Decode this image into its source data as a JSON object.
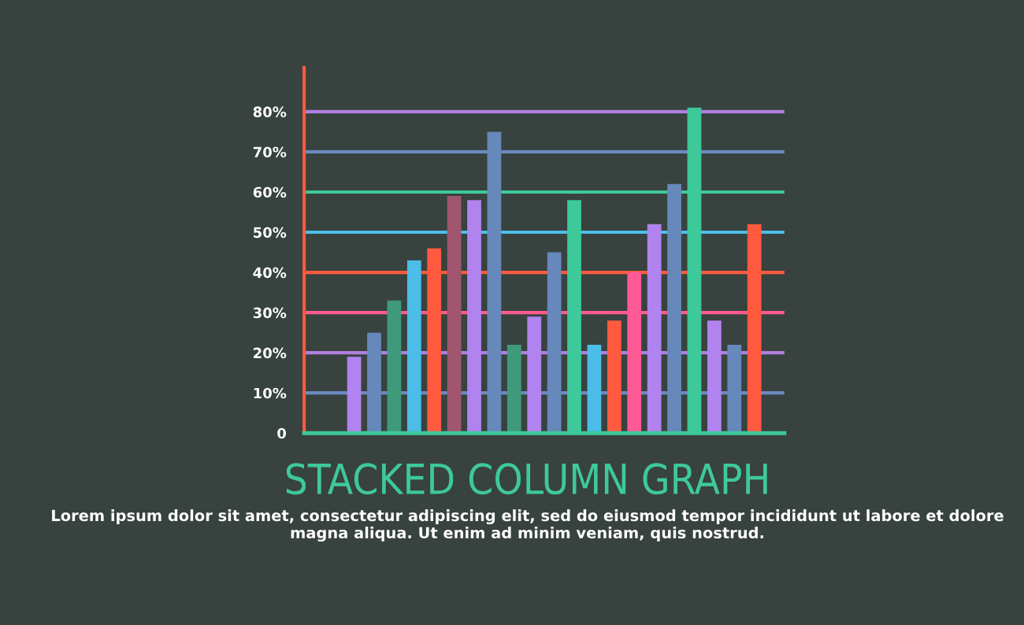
{
  "chart_data": {
    "type": "bar",
    "title": "STACKED COLUMN GRAPH",
    "annotations": [
      "Lorem ipsum dolor sit amet, consectetur adipiscing elit, sed do eiusmod tempor incididunt ut labore et dolore magna aliqua. Ut enim ad minim veniam, quis nostrud."
    ],
    "categories": [
      null,
      null,
      null,
      null,
      null,
      null,
      null,
      null,
      null,
      null,
      null,
      null,
      null,
      null,
      null,
      null,
      null,
      null,
      null,
      null,
      null
    ],
    "values": [
      19,
      25,
      33,
      43,
      46,
      59,
      58,
      75,
      22,
      29,
      45,
      58,
      22,
      28,
      40,
      52,
      62,
      81,
      28,
      22,
      52
    ],
    "colors": [
      "#b183ee",
      "#6688bb",
      "#3e9a7a",
      "#4bbde8",
      "#ff5a40",
      "#a0566e",
      "#b183ee",
      "#6688bb",
      "#3e9a7a",
      "#b183ee",
      "#6688bb",
      "#3ec99a",
      "#4bbde8",
      "#ff5a40",
      "#ff5a96",
      "#b183ee",
      "#6688bb",
      "#3ec99a",
      "#b183ee",
      "#6688bb",
      "#ff5a40"
    ],
    "ylim": [
      0,
      91
    ],
    "yticks": [
      0,
      {
        "value": 10,
        "label": "10%"
      },
      {
        "value": 20,
        "label": "20%"
      },
      {
        "value": 30,
        "label": "30%"
      },
      {
        "value": 40,
        "label": "40%"
      },
      {
        "value": 50,
        "label": "50%"
      },
      {
        "value": 60,
        "label": "60%"
      },
      {
        "value": 70,
        "label": "70%"
      },
      {
        "value": 80,
        "label": "80%"
      }
    ],
    "ref_lines": [
      {
        "axis": "y",
        "value": 10,
        "color": "#6a8bbf"
      },
      {
        "axis": "y",
        "value": 20,
        "color": "#b07fe0"
      },
      {
        "axis": "y",
        "value": 30,
        "color": "#ff5a8c"
      },
      {
        "axis": "y",
        "value": 40,
        "color": "#ff5a40"
      },
      {
        "axis": "y",
        "value": 50,
        "color": "#4cc0e8"
      },
      {
        "axis": "y",
        "value": 60,
        "color": "#3ec99a"
      },
      {
        "axis": "y",
        "value": 70,
        "color": "#6a8bbf"
      },
      {
        "axis": "y",
        "value": 80,
        "color": "#b07fe0"
      }
    ],
    "grid": false,
    "legend": false
  }
}
